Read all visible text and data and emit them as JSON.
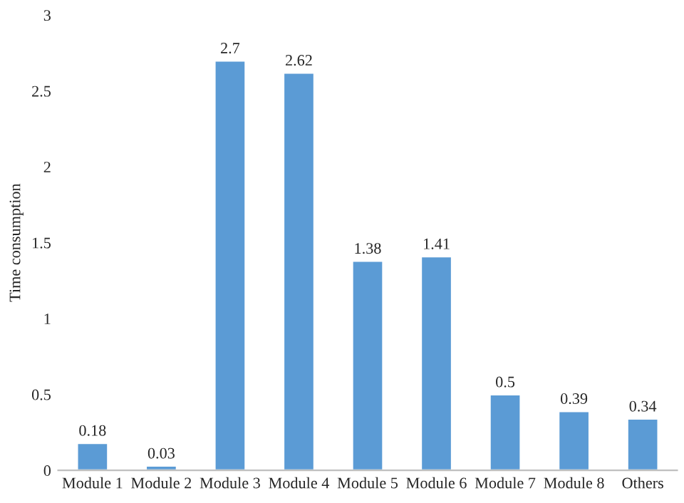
{
  "chart_data": {
    "type": "bar",
    "ylabel": "Time consumption",
    "categories": [
      "Module 1",
      "Module 2",
      "Module 3",
      "Module 4",
      "Module 5",
      "Module 6",
      "Module 7",
      "Module 8",
      "Others"
    ],
    "values": [
      0.18,
      0.03,
      2.7,
      2.62,
      1.38,
      1.41,
      0.5,
      0.39,
      0.34
    ],
    "color": "#5b9bd5",
    "ylim": [
      0,
      3
    ],
    "yticks": [
      0,
      0.5,
      1,
      1.5,
      2,
      2.5,
      3
    ],
    "data_labels": true
  }
}
